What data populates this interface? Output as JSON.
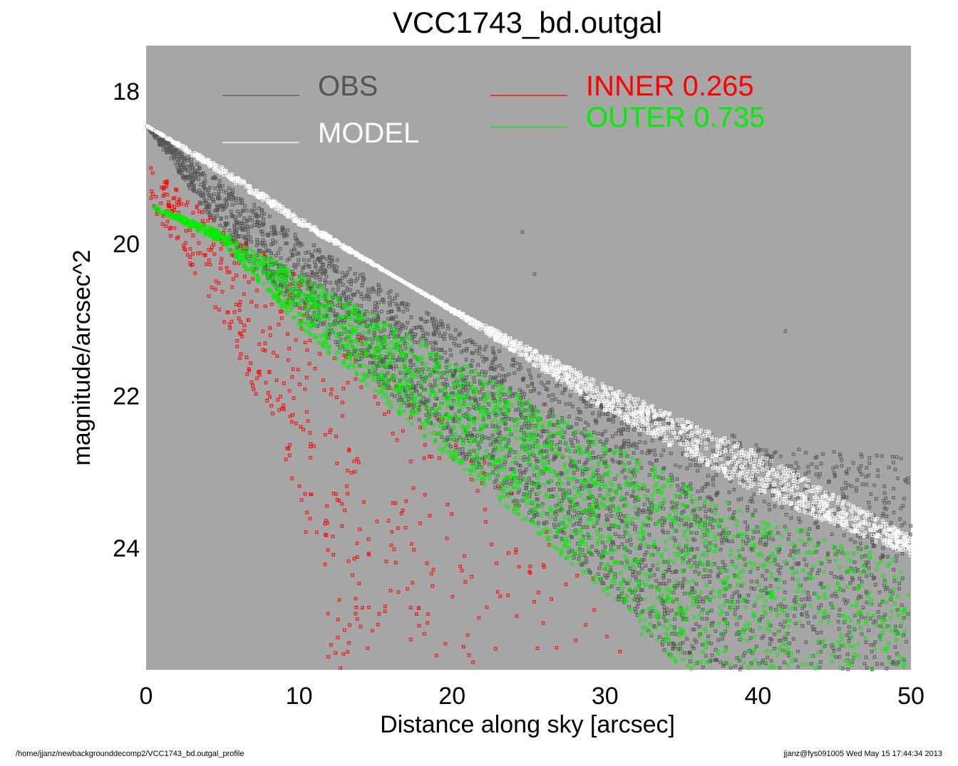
{
  "chart_data": {
    "type": "scatter",
    "title": "VCC1743_bd.outgal",
    "xlabel": "Distance along sky [arcsec]",
    "ylabel": "magnitude/arcsec^2",
    "xlim": [
      0,
      50
    ],
    "ylim": [
      17.4,
      25.6
    ],
    "y_inverted": true,
    "x_ticks": [
      "0",
      "10",
      "20",
      "30",
      "40",
      "50"
    ],
    "y_ticks": [
      "18",
      "20",
      "22",
      "24"
    ],
    "background_color": "#a6a6a6",
    "grid": false,
    "legend_position": "top",
    "series": [
      {
        "name": "OBS",
        "color": "#555555",
        "marker": "hollow-square",
        "model": {
          "lower_boundary": [
            [
              0,
              18.45
            ],
            [
              5,
              19.2
            ],
            [
              10,
              19.9
            ],
            [
              20,
              21.1
            ],
            [
              30,
              22.1
            ],
            [
              40,
              22.6
            ],
            [
              50,
              22.8
            ]
          ],
          "upper_boundary": [
            [
              0,
              18.45
            ],
            [
              5,
              19.9
            ],
            [
              10,
              20.9
            ],
            [
              20,
              22.7
            ],
            [
              30,
              24.5
            ],
            [
              35,
              25.6
            ]
          ]
        },
        "outliers": [
          [
            24.6,
            19.85
          ],
          [
            25.4,
            20.4
          ],
          [
            41.8,
            21.15
          ]
        ]
      },
      {
        "name": "MODEL",
        "color": "#ffffff",
        "marker": "hollow-square",
        "model": {
          "lower_boundary": [
            [
              0,
              18.45
            ],
            [
              10,
              19.75
            ],
            [
              20,
              20.85
            ],
            [
              30,
              21.85
            ],
            [
              40,
              22.75
            ],
            [
              50,
              23.85
            ]
          ],
          "upper_boundary": [
            [
              0,
              18.45
            ],
            [
              5,
              19.0
            ],
            [
              10,
              19.65
            ],
            [
              20,
              20.9
            ],
            [
              30,
              22.2
            ],
            [
              40,
              23.3
            ],
            [
              50,
              24.1
            ]
          ]
        }
      },
      {
        "name": "INNER",
        "label_value": "0.265",
        "color": "#ff0000",
        "marker": "hollow-square",
        "model": {
          "start_upper": [
            0.5,
            19.0
          ],
          "start_lower": [
            0.3,
            19.5
          ],
          "upper_boundary": [
            [
              0.5,
              19.0
            ],
            [
              5,
              19.8
            ],
            [
              10,
              20.4
            ],
            [
              20,
              22.3
            ],
            [
              30,
              24.5
            ],
            [
              35,
              25.6
            ]
          ],
          "lower_boundary": [
            [
              0.3,
              19.5
            ],
            [
              5,
              21.0
            ],
            [
              10,
              23.3
            ],
            [
              12,
              25.6
            ]
          ]
        }
      },
      {
        "name": "OUTER",
        "label_value": "0.735",
        "color": "#00ee00",
        "marker": "hollow-square",
        "model": {
          "upper_boundary": [
            [
              0.5,
              19.5
            ],
            [
              5,
              19.85
            ],
            [
              10,
              20.4
            ],
            [
              20,
              21.5
            ],
            [
              30,
              22.6
            ],
            [
              40,
              23.6
            ],
            [
              50,
              24.15
            ]
          ],
          "lower_boundary": [
            [
              0.5,
              19.55
            ],
            [
              5,
              20.0
            ],
            [
              10,
              21.1
            ],
            [
              20,
              22.85
            ],
            [
              30,
              24.6
            ],
            [
              34.5,
              25.6
            ]
          ],
          "extends_to": [
            50,
            25.6
          ]
        }
      }
    ],
    "legend": [
      {
        "label": "OBS",
        "color": "#555555"
      },
      {
        "label": "MODEL",
        "color": "#ffffff"
      },
      {
        "label": "INNER  0.265",
        "color": "#ff0000"
      },
      {
        "label": "OUTER  0.735",
        "color": "#00ee00"
      }
    ]
  },
  "footer": {
    "left": "/home/jjanz/newbackgrounddecomp2/VCC1743_bd.outgal_profile",
    "right": "jjanz@fys091005  Wed May 15 17:44:34 2013"
  }
}
